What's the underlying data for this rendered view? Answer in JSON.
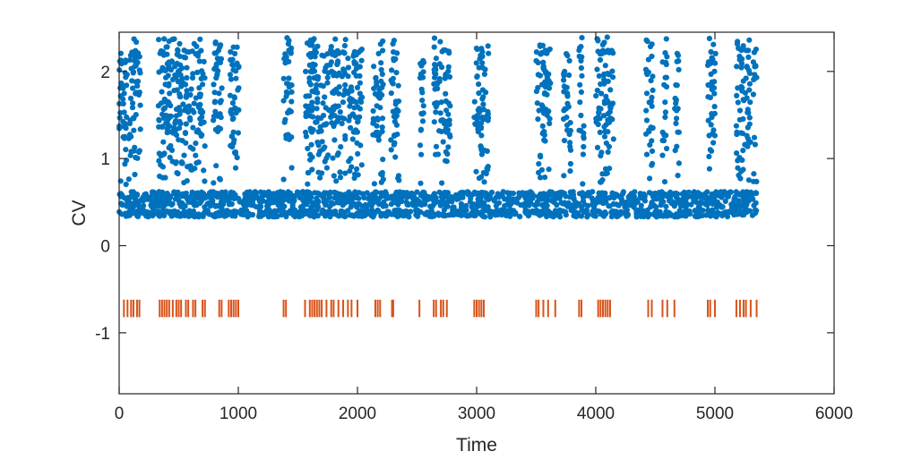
{
  "chart_data": {
    "type": "scatter",
    "title": "",
    "xlabel": "Time",
    "ylabel": "CV",
    "xlim": [
      0,
      6000
    ],
    "ylim": [
      -1.7,
      2.45
    ],
    "xticks": [
      "0",
      "1000",
      "2000",
      "3000",
      "4000",
      "5000",
      "6000"
    ],
    "yticks": [
      "-1",
      "0",
      "1",
      "2"
    ],
    "grid": false,
    "legend": "none",
    "colors": {
      "scatter": "#0072BD",
      "events": "#D95319",
      "axes": "#262626"
    },
    "scatter_x_range": [
      0,
      5350
    ],
    "scatter_low_band": {
      "low_y": [
        0.33,
        0.41
      ],
      "mid_y": [
        0.44,
        0.52
      ],
      "high_y": [
        0.53,
        0.62
      ]
    },
    "scatter_burst_clusters": [
      [
        0,
        70
      ],
      [
        80,
        180
      ],
      [
        330,
        720
      ],
      [
        790,
        870
      ],
      [
        930,
        1010
      ],
      [
        1380,
        1450
      ],
      [
        1560,
        1760
      ],
      [
        1770,
        1900
      ],
      [
        1920,
        2040
      ],
      [
        2130,
        2220
      ],
      [
        2280,
        2350
      ],
      [
        2520,
        2560
      ],
      [
        2640,
        2780
      ],
      [
        2980,
        3100
      ],
      [
        3500,
        3620
      ],
      [
        3730,
        3790
      ],
      [
        3860,
        3900
      ],
      [
        4000,
        4150
      ],
      [
        4420,
        4480
      ],
      [
        4560,
        4600
      ],
      [
        4660,
        4700
      ],
      [
        4940,
        5010
      ],
      [
        5180,
        5300
      ],
      [
        5320,
        5350
      ]
    ],
    "events": {
      "y": -0.72,
      "height": 0.2,
      "x": [
        40,
        70,
        100,
        120,
        150,
        170,
        340,
        360,
        380,
        400,
        420,
        450,
        480,
        500,
        520,
        560,
        580,
        620,
        640,
        700,
        720,
        840,
        860,
        920,
        940,
        960,
        980,
        1000,
        1380,
        1400,
        1560,
        1600,
        1620,
        1640,
        1660,
        1680,
        1700,
        1740,
        1780,
        1800,
        1840,
        1880,
        1920,
        1950,
        2000,
        2150,
        2170,
        2190,
        2290,
        2300,
        2520,
        2640,
        2660,
        2700,
        2720,
        2750,
        2980,
        3000,
        3020,
        3040,
        3060,
        3500,
        3520,
        3560,
        3600,
        3660,
        3860,
        3880,
        4020,
        4040,
        4060,
        4080,
        4100,
        4120,
        4440,
        4470,
        4560,
        4600,
        4660,
        4940,
        4960,
        5000,
        5180,
        5210,
        5240,
        5260,
        5300,
        5350
      ]
    }
  }
}
